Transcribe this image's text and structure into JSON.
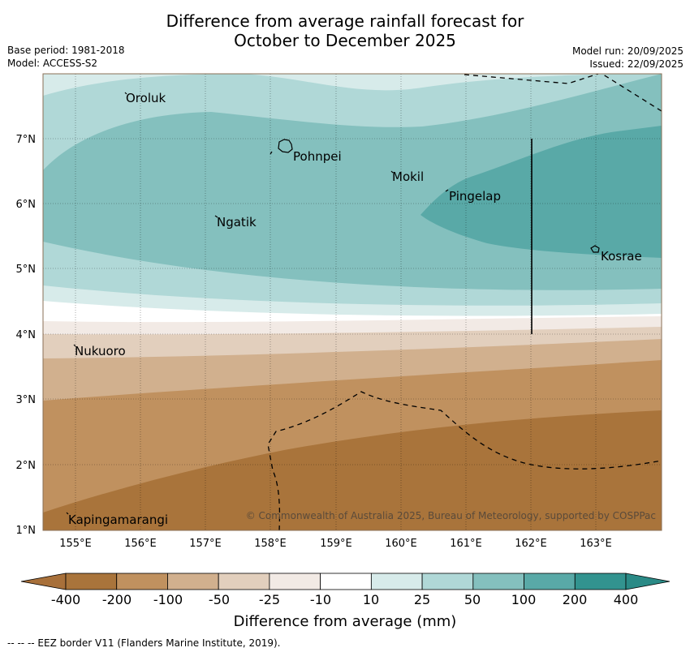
{
  "title_line1": "Difference from average rainfall forecast for",
  "title_line2": "October to December 2025",
  "base_period": "Base period: 1981-2018",
  "model": "Model: ACCESS-S2",
  "model_run": "Model run: 20/09/2025",
  "issued": "Issued: 22/09/2025",
  "copyright": "© Commonwealth of Australia 2025, Bureau of Meteorology, supported by COSPPac",
  "footer": "-- -- -- EEZ border V11 (Flanders Marine Institute, 2019).",
  "map": {
    "lon_labels": [
      "155°E",
      "156°E",
      "157°E",
      "158°E",
      "159°E",
      "160°E",
      "161°E",
      "162°E",
      "163°E"
    ],
    "lat_labels": [
      "7°N",
      "6°N",
      "5°N",
      "4°N",
      "3°N",
      "2°N",
      "1°N"
    ],
    "places": [
      {
        "name": "Oroluk"
      },
      {
        "name": "Pohnpei"
      },
      {
        "name": "Mokil"
      },
      {
        "name": "Pingelap"
      },
      {
        "name": "Ngatik"
      },
      {
        "name": "Kosrae"
      },
      {
        "name": "Nukuoro"
      },
      {
        "name": "Kapingamarangi"
      }
    ]
  },
  "colorbar": {
    "title": "Difference from average (mm)",
    "ticks": [
      "-400",
      "-200",
      "-100",
      "-50",
      "-25",
      "-10",
      "10",
      "25",
      "50",
      "100",
      "200",
      "400"
    ],
    "colors": [
      "#a8703a",
      "#a9743b",
      "#c0915f",
      "#d1b08e",
      "#e2cfbd",
      "#f2eae5",
      "#ffffff",
      "#d7ebea",
      "#b0d8d7",
      "#84c0be",
      "#59a9a7",
      "#32938f",
      "#2a8a86"
    ]
  }
}
